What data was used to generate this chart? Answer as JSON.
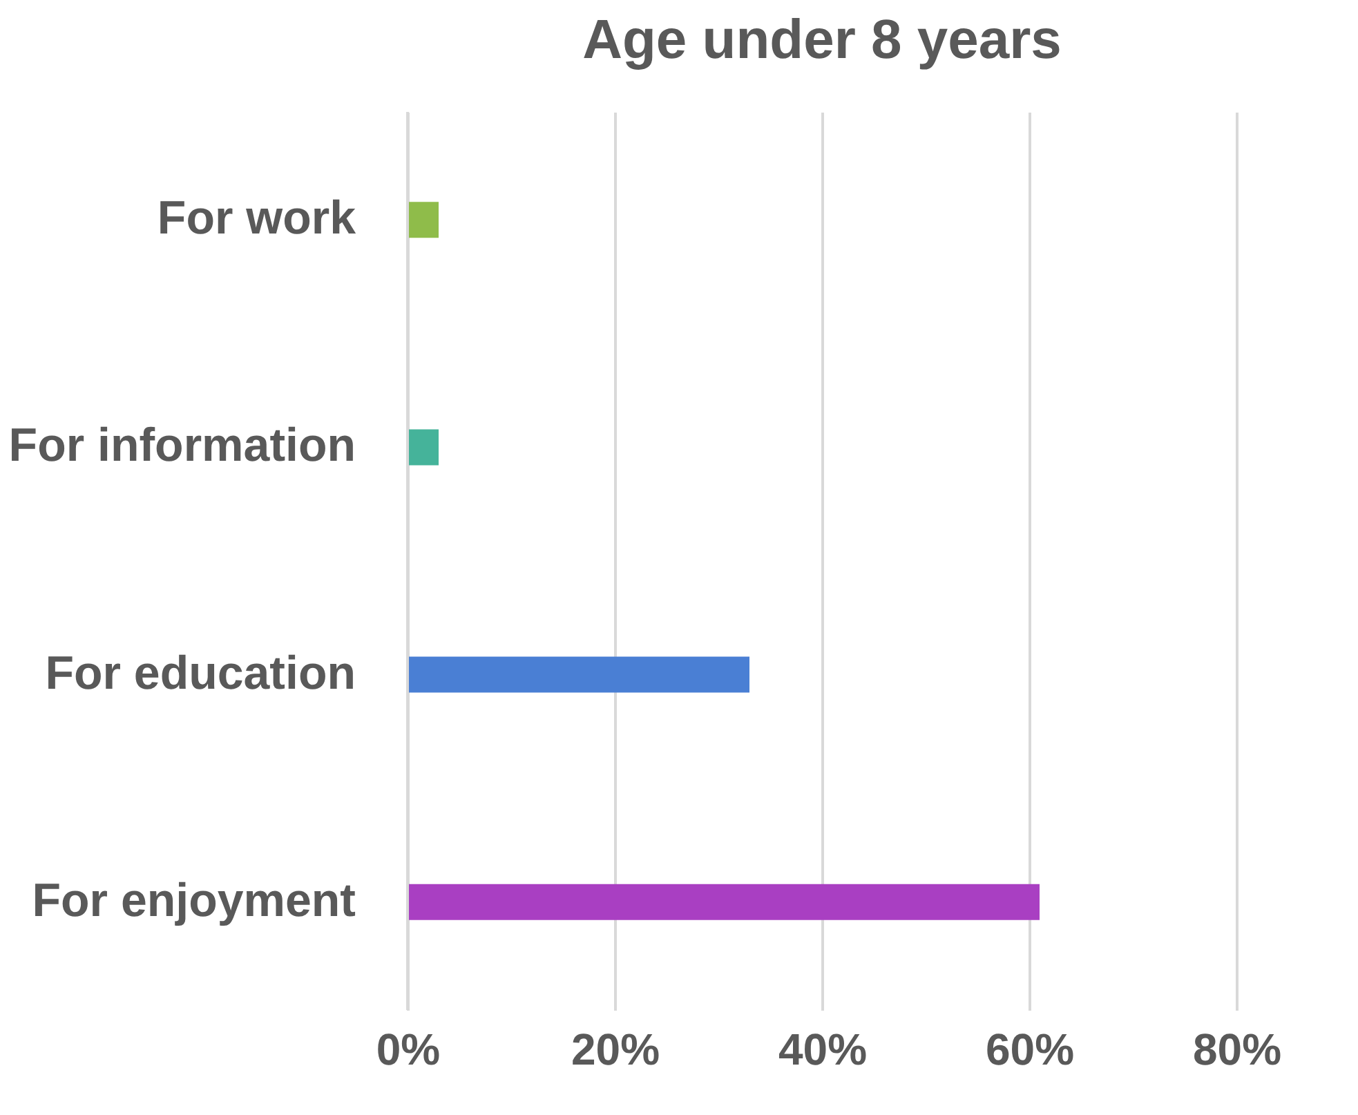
{
  "chart_data": {
    "type": "bar",
    "orientation": "horizontal",
    "title": "Age under 8 years",
    "categories": [
      "For work",
      "For information",
      "For education",
      "For enjoyment"
    ],
    "values": [
      3,
      3,
      33,
      61
    ],
    "colors": [
      "#8fbc4a",
      "#45b39a",
      "#4a7fd4",
      "#a93fc2"
    ],
    "xlim": [
      0,
      80
    ],
    "xticks": [
      {
        "value": 0,
        "label": "0%"
      },
      {
        "value": 20,
        "label": "20%"
      },
      {
        "value": 40,
        "label": "40%"
      },
      {
        "value": 60,
        "label": "60%"
      },
      {
        "value": 80,
        "label": "80%"
      }
    ],
    "grid": "x"
  }
}
